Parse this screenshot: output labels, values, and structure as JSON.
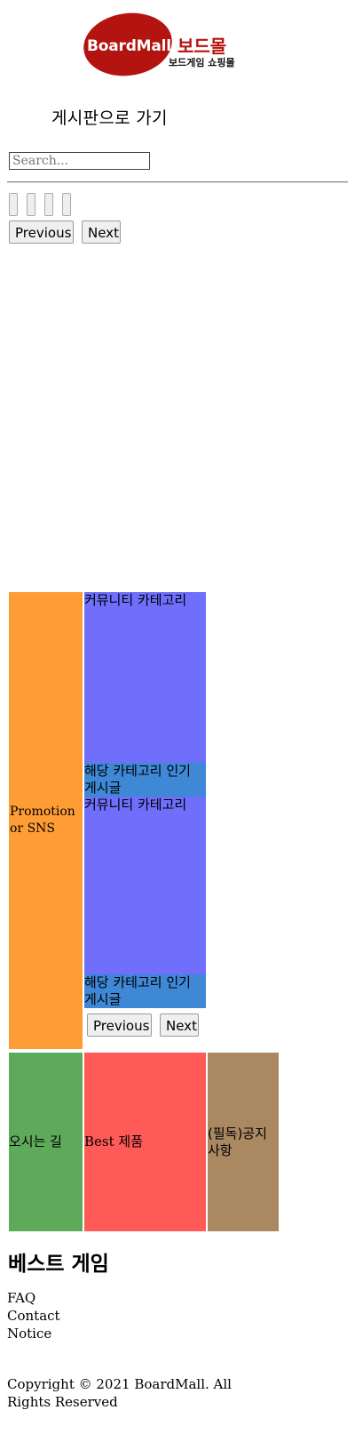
{
  "logo": {
    "en": "BoardMall",
    "kr": "보드몰",
    "sub": "보드게임 쇼핑몰"
  },
  "nav": {
    "board_link": "게시판으로 가기"
  },
  "search": {
    "placeholder": "Search..."
  },
  "slider": {
    "prev": "Previous",
    "next": "Next"
  },
  "promo": {
    "label": "Promotion or SNS"
  },
  "community": {
    "sections": [
      {
        "category": "커뮤니티 카테고리",
        "hot": "해당 카테고리 인기 게시글"
      },
      {
        "category": "커뮤니티 카테고리",
        "hot": "해당 카테고리 인기 게시글"
      }
    ],
    "prev": "Previous",
    "next": "Next"
  },
  "boxes": {
    "directions": "오시는 길",
    "best_products": "Best 제품",
    "notice": "(필독)공지사항"
  },
  "best_games": {
    "title": "베스트 게임"
  },
  "footer": {
    "links": [
      "FAQ",
      "Contact",
      "Notice"
    ],
    "copyright": "Copyright © 2021 BoardMall. All Rights Reserved"
  },
  "colors": {
    "logo_red": "#b41410",
    "promo": "#ff9d35",
    "category": "#6f6ffc",
    "hot": "#3f88d6",
    "directions": "#5daa5b",
    "best": "#ff5a58",
    "notice": "#a98862"
  }
}
